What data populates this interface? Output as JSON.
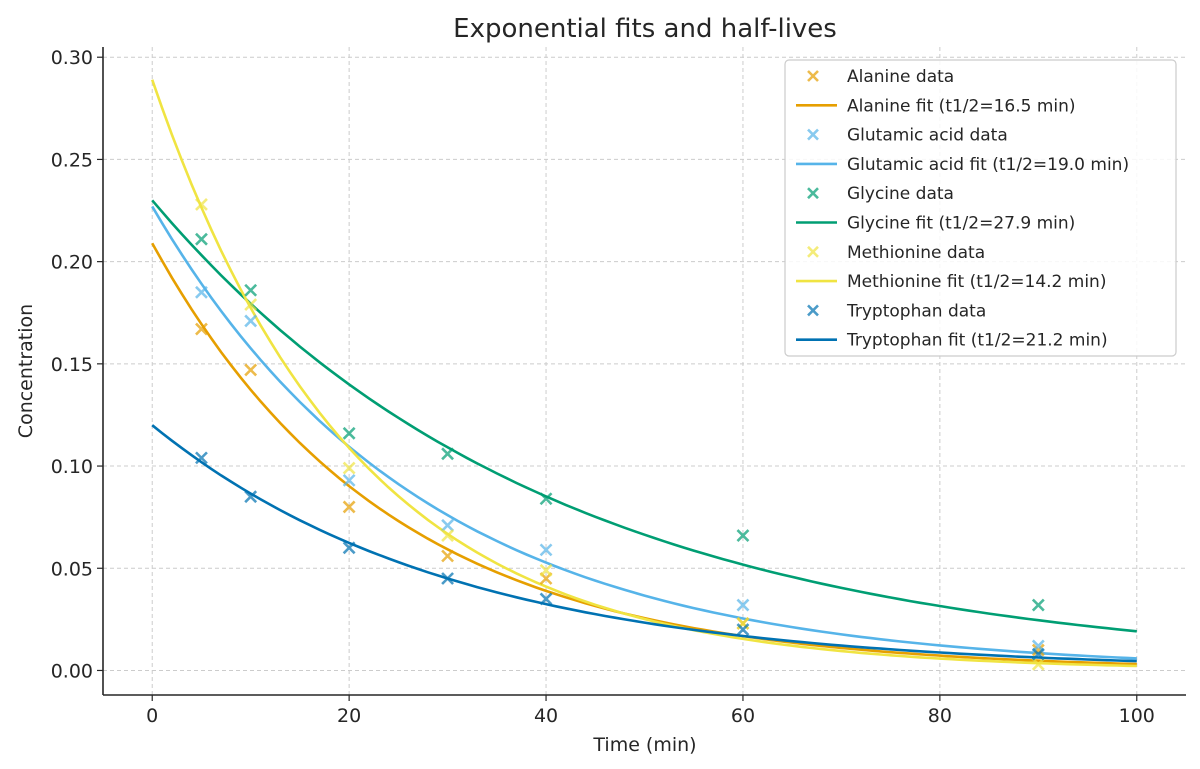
{
  "chart_data": {
    "type": "scatter",
    "title": "Exponential fits and half-lives",
    "xlabel": "Time (min)",
    "ylabel": "Concentration",
    "xlim": [
      -5,
      105
    ],
    "ylim": [
      -0.012,
      0.305
    ],
    "xticks": [
      0,
      20,
      40,
      60,
      80,
      100
    ],
    "xtick_labels": [
      "0",
      "20",
      "40",
      "60",
      "80",
      "100"
    ],
    "yticks": [
      0.0,
      0.05,
      0.1,
      0.15,
      0.2,
      0.25,
      0.3
    ],
    "ytick_labels": [
      "0.00",
      "0.05",
      "0.10",
      "0.15",
      "0.20",
      "0.25",
      "0.30"
    ],
    "grid": true,
    "legend_position": "top-right",
    "x": [
      5,
      10,
      20,
      30,
      40,
      60,
      90
    ],
    "series": [
      {
        "name": "Alanine",
        "data_label": "Alanine data",
        "fit_label": "Alanine fit (t1/2=16.5 min)",
        "color": "#E69F00",
        "values": [
          0.167,
          0.147,
          0.08,
          0.056,
          0.045,
          0.023,
          0.01
        ],
        "fit": {
          "A0": 0.209,
          "half_life": 16.5
        }
      },
      {
        "name": "Glutamic acid",
        "data_label": "Glutamic acid data",
        "fit_label": "Glutamic acid fit (t1/2=19.0 min)",
        "color": "#56B4E9",
        "values": [
          0.185,
          0.171,
          0.093,
          0.071,
          0.059,
          0.032,
          0.012
        ],
        "fit": {
          "A0": 0.227,
          "half_life": 19.0
        }
      },
      {
        "name": "Glycine",
        "data_label": "Glycine data",
        "fit_label": "Glycine fit (t1/2=27.9 min)",
        "color": "#009E73",
        "values": [
          0.211,
          0.186,
          0.116,
          0.106,
          0.084,
          0.066,
          0.032
        ],
        "fit": {
          "A0": 0.23,
          "half_life": 27.9
        }
      },
      {
        "name": "Methionine",
        "data_label": "Methionine data",
        "fit_label": "Methionine fit (t1/2=14.2 min)",
        "color": "#F0E442",
        "values": [
          0.228,
          0.179,
          0.099,
          0.066,
          0.049,
          0.023,
          0.003
        ],
        "fit": {
          "A0": 0.289,
          "half_life": 14.2
        }
      },
      {
        "name": "Tryptophan",
        "data_label": "Tryptophan data",
        "fit_label": "Tryptophan fit (t1/2=21.2 min)",
        "color": "#0072B2",
        "values": [
          0.104,
          0.085,
          0.06,
          0.045,
          0.035,
          0.02,
          0.008
        ],
        "fit": {
          "A0": 0.12,
          "half_life": 21.2
        }
      }
    ]
  }
}
